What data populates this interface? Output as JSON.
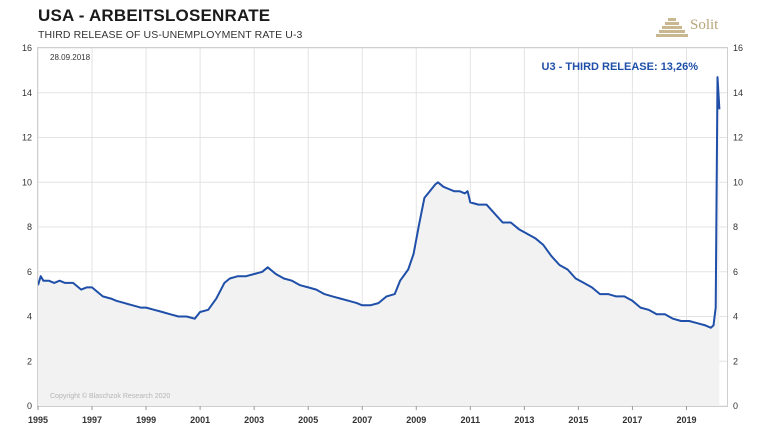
{
  "header": {
    "title": "USA - ARBEITSLOSENRATE",
    "subtitle": "THIRD RELEASE OF US-UNEMPLOYMENT RATE U-3",
    "logo_text": "Solit"
  },
  "chart_data": {
    "type": "area",
    "date_label": "28.09.2018",
    "annotation": "U3 - THIRD RELEASE: 13,26%",
    "copyright": "Copyright © Blaschzok Research 2020",
    "xlim": [
      1995,
      2020.5
    ],
    "ylim": [
      0,
      16
    ],
    "x_ticks": [
      "1995",
      "1997",
      "1999",
      "2001",
      "2003",
      "2005",
      "2007",
      "2009",
      "2011",
      "2013",
      "2015",
      "2017",
      "2019"
    ],
    "y_ticks": [
      "0",
      "2",
      "4",
      "6",
      "8",
      "10",
      "12",
      "14",
      "16"
    ],
    "grid": true,
    "colors": {
      "line": "#1f4fa8",
      "fill": "#f2f2f2",
      "grid": "#e3e3e3"
    },
    "series": [
      {
        "x": [
          1995.0,
          1995.1,
          1995.2,
          1995.4,
          1995.6,
          1995.8,
          1996.0,
          1996.3,
          1996.6,
          1996.8,
          1997.0,
          1997.2,
          1997.4,
          1997.7,
          1997.9,
          1998.2,
          1998.5,
          1998.8,
          1999.0,
          1999.3,
          1999.6,
          1999.9,
          2000.2,
          2000.5,
          2000.8,
          2001.0,
          2001.3,
          2001.6,
          2001.9,
          2002.1,
          2002.4,
          2002.7,
          2003.0,
          2003.3,
          2003.5,
          2003.8,
          2004.1,
          2004.4,
          2004.7,
          2005.0,
          2005.3,
          2005.6,
          2005.9,
          2006.2,
          2006.5,
          2006.8,
          2007.0,
          2007.3,
          2007.6,
          2007.9,
          2008.2,
          2008.4,
          2008.7,
          2008.9,
          2009.1,
          2009.3,
          2009.5,
          2009.7,
          2009.8,
          2010.0,
          2010.2,
          2010.4,
          2010.6,
          2010.8,
          2010.9,
          2011.0,
          2011.3,
          2011.6,
          2011.9,
          2012.2,
          2012.5,
          2012.8,
          2013.1,
          2013.4,
          2013.7,
          2014.0,
          2014.3,
          2014.6,
          2014.9,
          2015.2,
          2015.5,
          2015.8,
          2016.1,
          2016.4,
          2016.7,
          2017.0,
          2017.3,
          2017.6,
          2017.9,
          2018.2,
          2018.5,
          2018.8,
          2019.1,
          2019.4,
          2019.7,
          2019.9,
          2020.0,
          2020.08,
          2020.15,
          2020.22
        ],
        "values": [
          5.4,
          5.8,
          5.6,
          5.6,
          5.5,
          5.6,
          5.5,
          5.5,
          5.2,
          5.3,
          5.3,
          5.1,
          4.9,
          4.8,
          4.7,
          4.6,
          4.5,
          4.4,
          4.4,
          4.3,
          4.2,
          4.1,
          4.0,
          4.0,
          3.9,
          4.2,
          4.3,
          4.8,
          5.5,
          5.7,
          5.8,
          5.8,
          5.9,
          6.0,
          6.2,
          5.9,
          5.7,
          5.6,
          5.4,
          5.3,
          5.2,
          5.0,
          4.9,
          4.8,
          4.7,
          4.6,
          4.5,
          4.5,
          4.6,
          4.9,
          5.0,
          5.6,
          6.1,
          6.8,
          8.1,
          9.3,
          9.6,
          9.9,
          10.0,
          9.8,
          9.7,
          9.6,
          9.6,
          9.5,
          9.6,
          9.1,
          9.0,
          9.0,
          8.6,
          8.2,
          8.2,
          7.9,
          7.7,
          7.5,
          7.2,
          6.7,
          6.3,
          6.1,
          5.7,
          5.5,
          5.3,
          5.0,
          5.0,
          4.9,
          4.9,
          4.7,
          4.4,
          4.3,
          4.1,
          4.1,
          3.9,
          3.8,
          3.8,
          3.7,
          3.6,
          3.5,
          3.6,
          4.4,
          14.7,
          13.26
        ]
      }
    ]
  }
}
